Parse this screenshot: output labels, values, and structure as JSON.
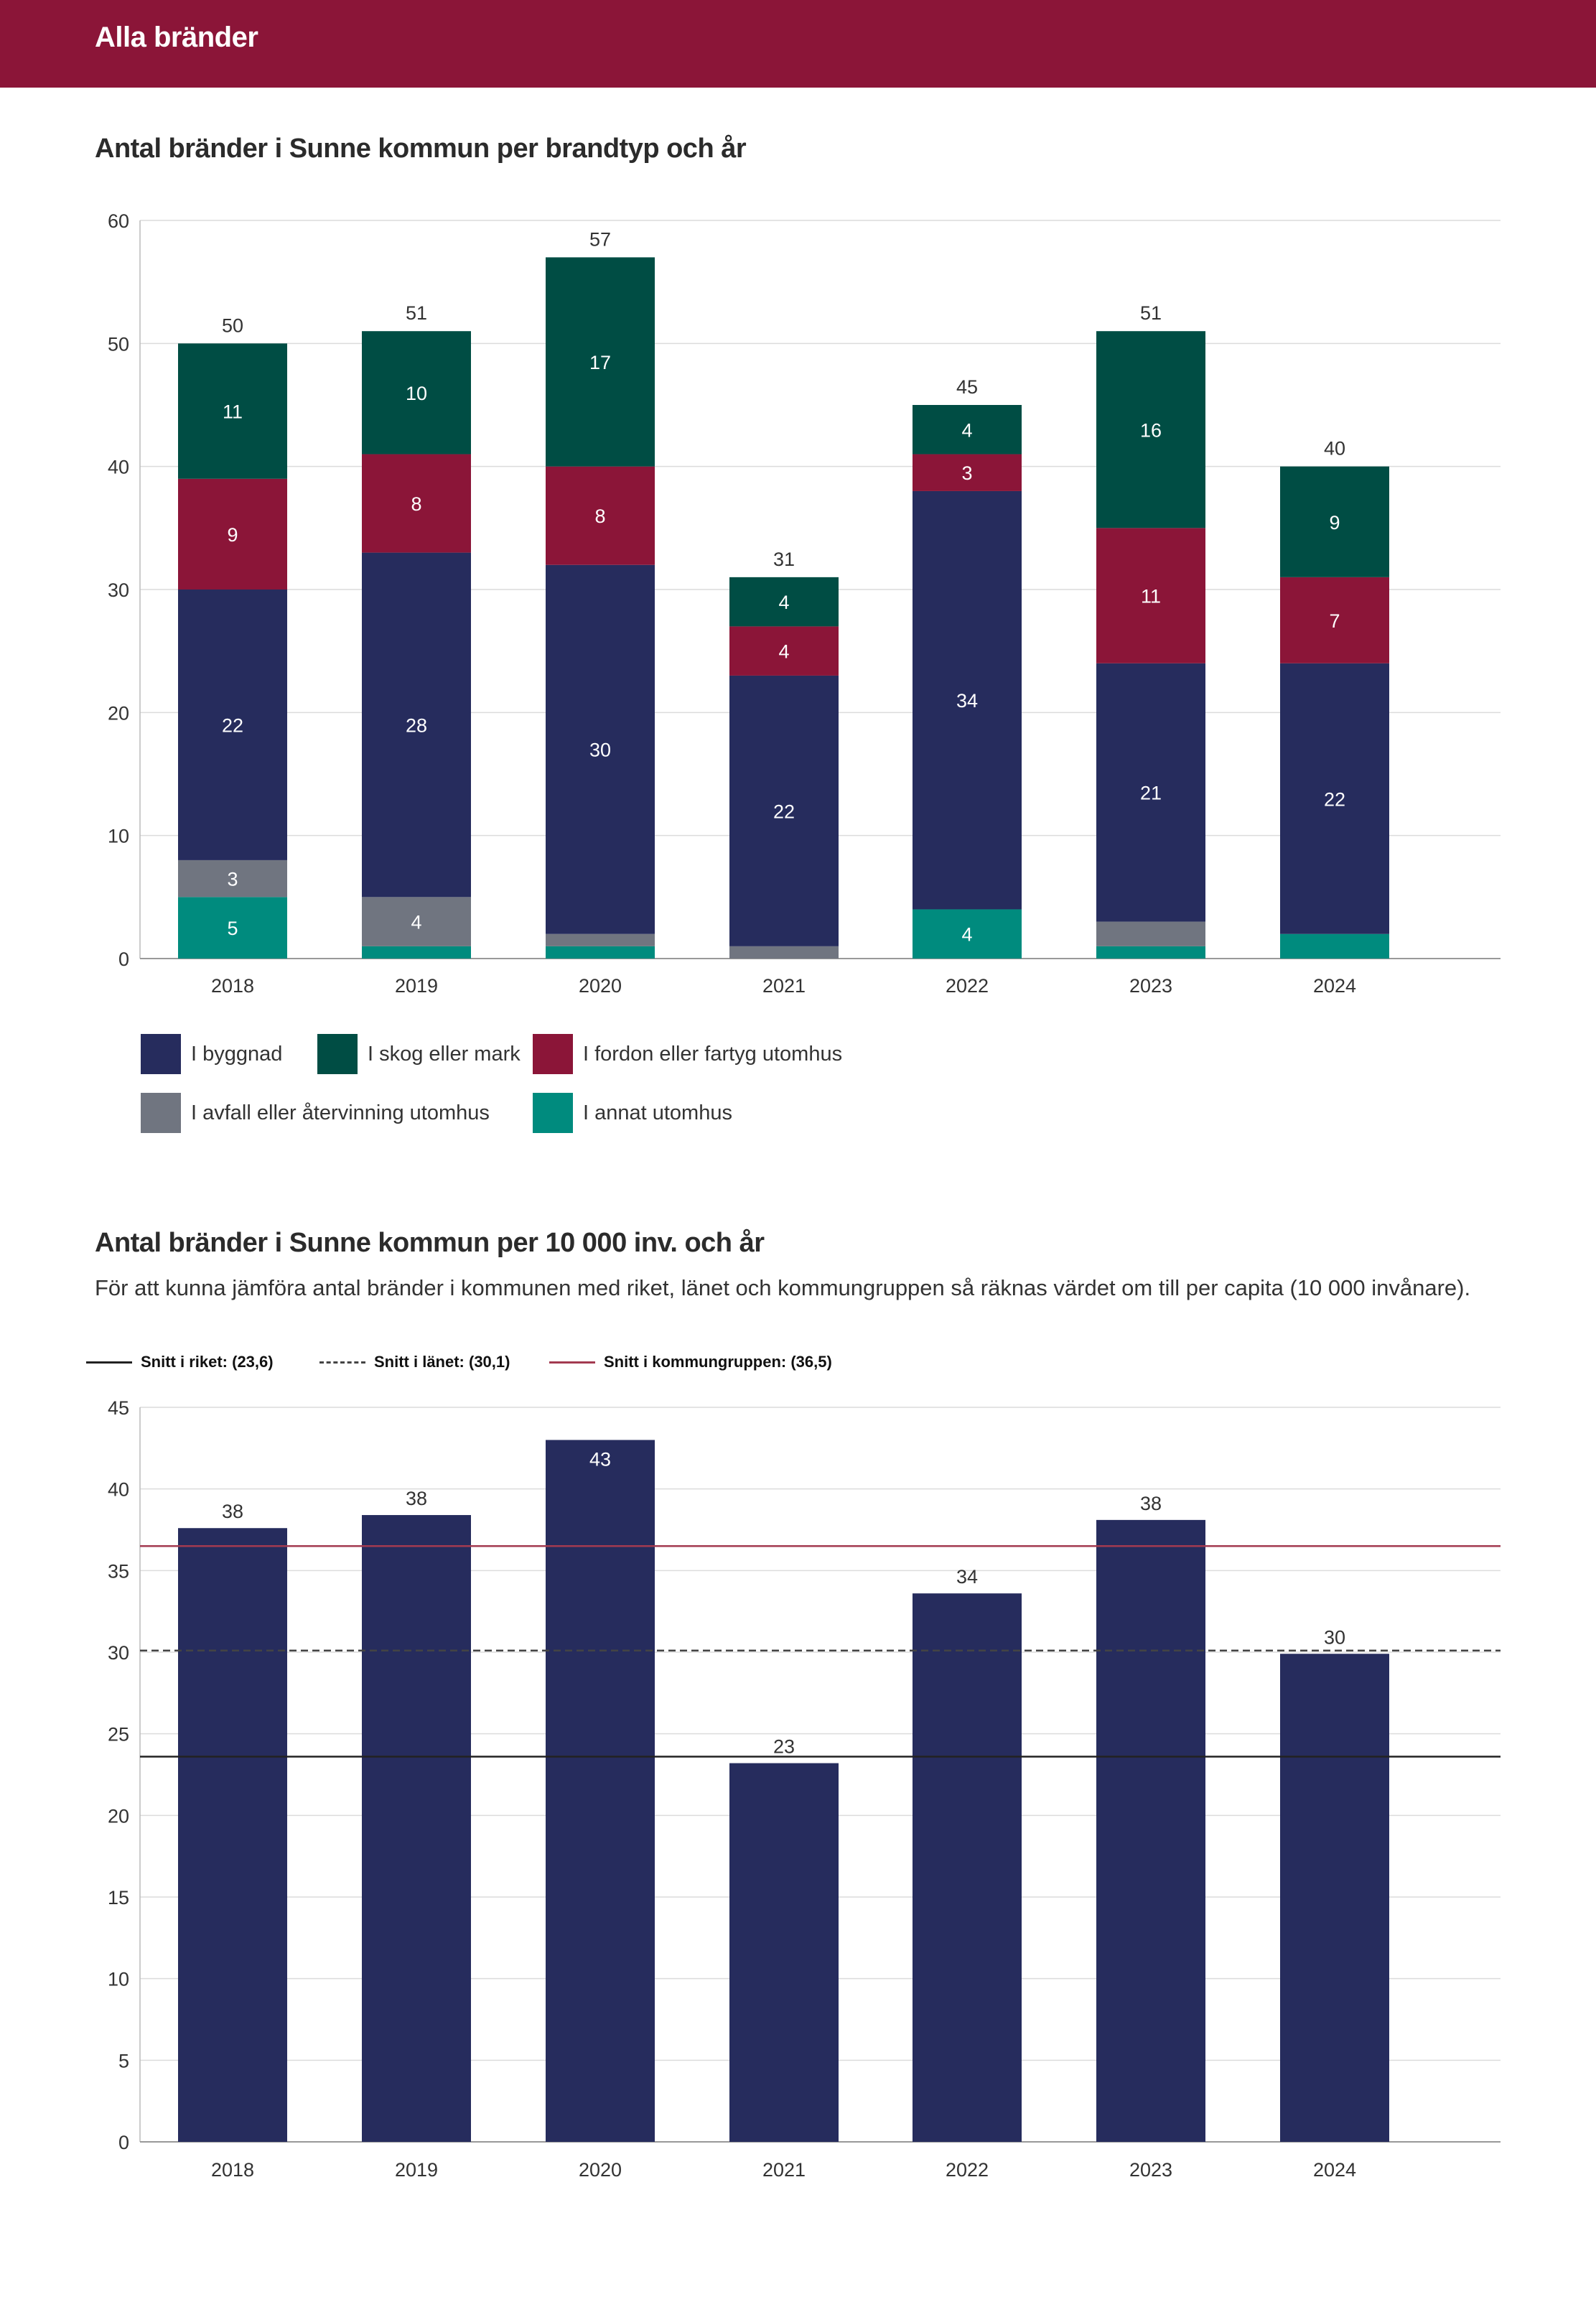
{
  "header": {
    "title": "Alla bränder"
  },
  "chart1": {
    "title": "Antal bränder i Sunne kommun per brandtyp och år"
  },
  "chart2": {
    "title": "Antal bränder i Sunne kommun per 10 000 inv. och år",
    "subtitle": "För att kunna jämföra antal bränder i kommunen med riket, länet och kommungruppen så räknas värdet om till per capita (10 000 invånare)."
  },
  "colors": {
    "header": "#8b1538",
    "byggnad": "#262c5d",
    "skog": "#004d44",
    "fordon": "#8b1538",
    "avfall": "#707580",
    "annat": "#008b7e",
    "riket": "#222222",
    "lanet": "#444444",
    "kommungrupp": "#a33a50"
  },
  "chart_data": [
    {
      "type": "bar",
      "stacked": true,
      "title": "Antal bränder i Sunne kommun per brandtyp och år",
      "categories": [
        "2018",
        "2019",
        "2020",
        "2021",
        "2022",
        "2023",
        "2024"
      ],
      "ylim": [
        0,
        60
      ],
      "yticks": [
        "0",
        "10",
        "20",
        "30",
        "40",
        "50",
        "60"
      ],
      "series": [
        {
          "name": "I annat utomhus",
          "key": "annat",
          "values": [
            5,
            1,
            1,
            0,
            4,
            1,
            2
          ],
          "labels": [
            "5",
            "",
            "",
            "",
            "4",
            "",
            ""
          ]
        },
        {
          "name": "I avfall eller återvinning utomhus",
          "key": "avfall",
          "values": [
            3,
            4,
            1,
            1,
            0,
            2,
            0
          ],
          "labels": [
            "3",
            "4",
            "",
            "",
            "",
            "",
            ""
          ]
        },
        {
          "name": "I byggnad",
          "key": "byggnad",
          "values": [
            22,
            28,
            30,
            22,
            34,
            21,
            22
          ],
          "labels": [
            "22",
            "28",
            "30",
            "22",
            "34",
            "21",
            "22"
          ]
        },
        {
          "name": "I fordon eller fartyg utomhus",
          "key": "fordon",
          "values": [
            9,
            8,
            8,
            4,
            3,
            11,
            7
          ],
          "labels": [
            "9",
            "8",
            "8",
            "4",
            "3",
            "11",
            "7"
          ]
        },
        {
          "name": "I skog eller mark",
          "key": "skog",
          "values": [
            11,
            10,
            17,
            4,
            4,
            16,
            9
          ],
          "labels": [
            "11",
            "10",
            "17",
            "4",
            "4",
            "16",
            "9"
          ]
        }
      ],
      "totals": [
        "50",
        "51",
        "57",
        "31",
        "45",
        "51",
        "40"
      ],
      "legend": [
        {
          "name": "I byggnad",
          "key": "byggnad"
        },
        {
          "name": "I skog eller mark",
          "key": "skog"
        },
        {
          "name": "I fordon eller fartyg utomhus",
          "key": "fordon"
        },
        {
          "name": "I avfall eller återvinning utomhus",
          "key": "avfall"
        },
        {
          "name": "I annat utomhus",
          "key": "annat"
        }
      ]
    },
    {
      "type": "bar",
      "title": "Antal bränder i Sunne kommun per 10 000 inv. och år",
      "categories": [
        "2018",
        "2019",
        "2020",
        "2021",
        "2022",
        "2023",
        "2024"
      ],
      "values": [
        37.6,
        38.4,
        43.0,
        23.2,
        33.6,
        38.1,
        29.9
      ],
      "labels": [
        "38",
        "38",
        "43",
        "23",
        "34",
        "38",
        "30"
      ],
      "ylim": [
        0,
        45
      ],
      "yticks": [
        "0",
        "5",
        "10",
        "15",
        "20",
        "25",
        "30",
        "35",
        "40",
        "45"
      ],
      "reference_lines": [
        {
          "name": "Snitt i riket: (23,6)",
          "value": 23.6,
          "style": "solid",
          "key": "riket"
        },
        {
          "name": "Snitt i länet: (30,1)",
          "value": 30.1,
          "style": "dashed",
          "key": "lanet"
        },
        {
          "name": "Snitt i kommungruppen: (36,5)",
          "value": 36.5,
          "style": "solid",
          "key": "kommungrupp"
        }
      ]
    }
  ]
}
